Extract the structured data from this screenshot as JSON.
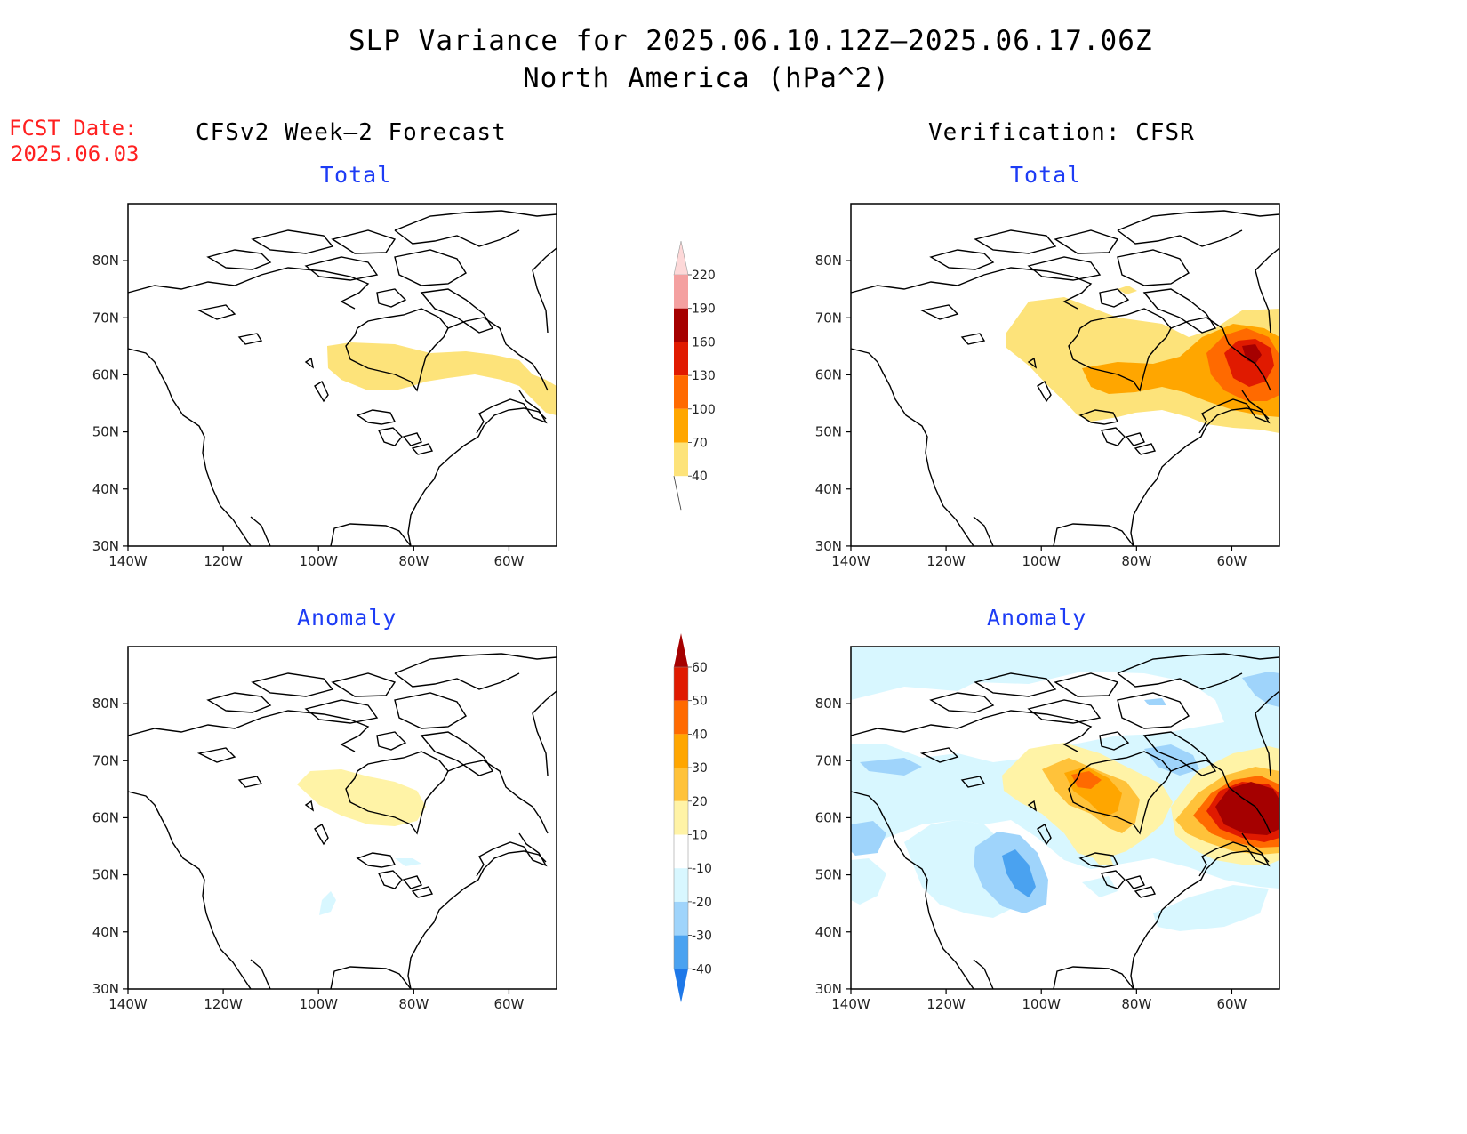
{
  "header": {
    "title": "SLP Variance for 2025.06.10.12Z–2025.06.17.06Z",
    "subtitle": "North America (hPa^2)"
  },
  "fcst": {
    "label": "FCST Date:",
    "date": "2025.06.03"
  },
  "columns": {
    "left": "CFSv2 Week–2 Forecast",
    "right": "Verification: CFSR"
  },
  "panels": {
    "total_label": "Total",
    "anomaly_label": "Anomaly"
  },
  "axes": {
    "lat_ticks": [
      "80N",
      "70N",
      "60N",
      "50N",
      "40N",
      "30N"
    ],
    "lon_ticks": [
      "140W",
      "120W",
      "100W",
      "80W",
      "60W"
    ]
  },
  "colorbars": {
    "total": {
      "labels": [
        "220",
        "190",
        "160",
        "130",
        "100",
        "70",
        "40"
      ],
      "colors": [
        "#fdd8d8",
        "#f4a0a0",
        "#a50000",
        "#e01a00",
        "#ff6a00",
        "#ffa600",
        "#fde37a"
      ]
    },
    "anomaly": {
      "labels": [
        "60",
        "50",
        "40",
        "30",
        "20",
        "10",
        "-10",
        "-20",
        "-30",
        "-40"
      ],
      "colors": [
        "#a50000",
        "#e01a00",
        "#ff6a00",
        "#ffa600",
        "#ffc23a",
        "#fff3a6",
        "#ffffff",
        "#d8f7ff",
        "#9fd4fb",
        "#4aa2f0",
        "#1e78e8"
      ]
    }
  },
  "map_data": {
    "type": "contour-map",
    "variable": "SLP variance",
    "units": "hPa^2",
    "region": "North America",
    "lat_range": [
      25,
      85
    ],
    "lon_range": [
      -140,
      -50
    ]
  }
}
